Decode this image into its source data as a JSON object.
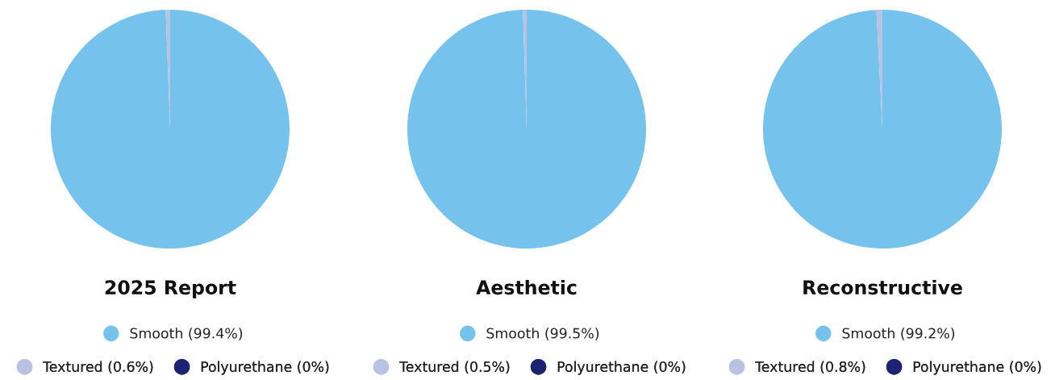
{
  "chart_data": [
    {
      "type": "pie",
      "title": "2025 Report",
      "categories": [
        "Smooth (99.4%)",
        "Textured (0.6%)",
        "Polyurethane (0%)"
      ],
      "values": [
        99.4,
        0.6,
        0
      ],
      "colors": [
        "#75c2ec",
        "#b8c3e3",
        "#1c2370"
      ],
      "legend": "bottom"
    },
    {
      "type": "pie",
      "title": "Aesthetic",
      "categories": [
        "Smooth (99.5%)",
        "Textured (0.5%)",
        "Polyurethane (0%)"
      ],
      "values": [
        99.5,
        0.5,
        0
      ],
      "colors": [
        "#75c2ec",
        "#b8c3e3",
        "#1c2370"
      ],
      "legend": "bottom"
    },
    {
      "type": "pie",
      "title": "Reconstructive",
      "categories": [
        "Smooth (99.2%)",
        "Textured (0.8%)",
        "Polyurethane (0%)"
      ],
      "values": [
        99.2,
        0.8,
        0
      ],
      "colors": [
        "#75c2ec",
        "#b8c3e3",
        "#1c2370"
      ],
      "legend": "bottom"
    }
  ]
}
